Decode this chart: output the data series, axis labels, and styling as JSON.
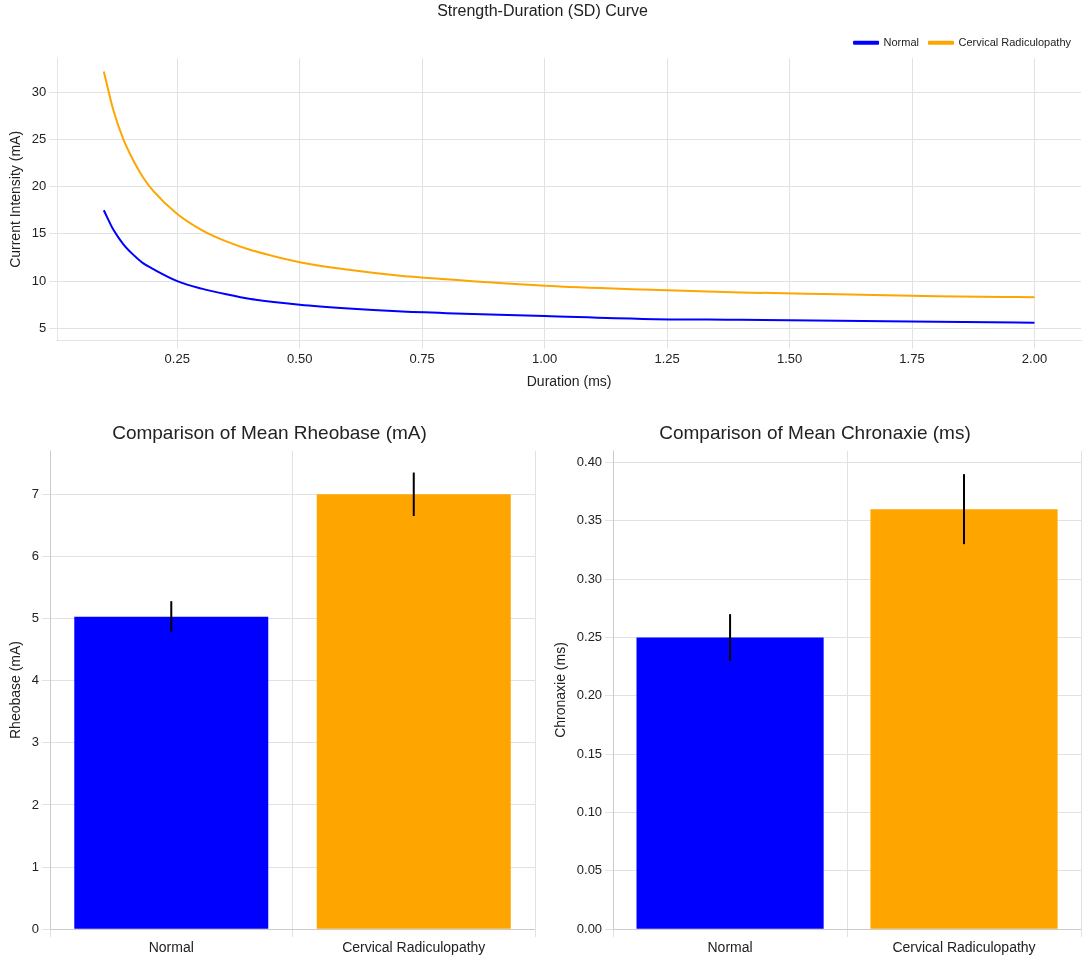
{
  "chart_data": [
    {
      "type": "line",
      "title": "Strength-Duration (SD) Curve",
      "xlabel": "Duration (ms)",
      "ylabel": "Current Intensity (mA)",
      "x": [
        0.1,
        0.12,
        0.14,
        0.16,
        0.18,
        0.2,
        0.25,
        0.3,
        0.35,
        0.4,
        0.5,
        0.6,
        0.7,
        0.8,
        1.0,
        1.2,
        1.4,
        1.6,
        1.8,
        2.0
      ],
      "series": [
        {
          "name": "Normal",
          "color": "#0000ff",
          "values": [
            17.5,
            15.4,
            13.9,
            12.8,
            11.9,
            11.3,
            10.0,
            9.2,
            8.6,
            8.1,
            7.5,
            7.1,
            6.8,
            6.6,
            6.3,
            6.0,
            5.9,
            5.8,
            5.7,
            5.6
          ]
        },
        {
          "name": "Cervical Radiculopathy",
          "color": "#ffa500",
          "values": [
            32.2,
            28.0,
            25.0,
            22.8,
            21.0,
            19.6,
            17.1,
            15.4,
            14.2,
            13.3,
            12.0,
            11.2,
            10.6,
            10.2,
            9.5,
            9.1,
            8.8,
            8.6,
            8.4,
            8.3
          ]
        }
      ],
      "xlim": [
        0.005,
        2.095
      ],
      "xticks": [
        0.25,
        {
          "value": 0.5,
          "label": "0.50"
        },
        0.75,
        {
          "value": 1,
          "label": "1.00"
        },
        1.25,
        {
          "value": 1.5,
          "label": "1.50"
        },
        1.75,
        {
          "value": 2,
          "label": "2.00"
        }
      ],
      "ylim": [
        3.7,
        33.6
      ],
      "yticks": [
        5,
        10,
        15,
        20,
        25,
        30
      ],
      "grid": true,
      "legend": "top right",
      "marker": "none",
      "line_style": "solid"
    },
    {
      "type": "bar",
      "title": "Comparison of Mean Rheobase (mA)",
      "ylabel": "Rheobase (mA)",
      "categories": [
        "Normal",
        "Cervical Radiculopathy"
      ],
      "values": [
        5.03,
        7.0
      ],
      "colors": [
        "#0000ff",
        "#ffa500"
      ],
      "errors": [
        0.25,
        0.35
      ],
      "ylim": [
        0,
        7.7
      ],
      "yticks": [
        0,
        1,
        2,
        3,
        4,
        5,
        6,
        7
      ],
      "grid": true
    },
    {
      "type": "bar",
      "title": "Comparison of Mean Chronaxie (ms)",
      "ylabel": "Chronaxie (ms)",
      "categories": [
        "Normal",
        "Cervical Radiculopathy"
      ],
      "values": [
        0.25,
        0.36
      ],
      "colors": [
        "#0000ff",
        "#ffa500"
      ],
      "errors": [
        0.02,
        0.03
      ],
      "ylim": [
        0,
        0.41
      ],
      "yticks": [
        {
          "value": 0,
          "label": "0.00"
        },
        {
          "value": 0.05,
          "label": "0.05"
        },
        {
          "value": 0.1,
          "label": "0.10"
        },
        {
          "value": 0.15,
          "label": "0.15"
        },
        {
          "value": 0.2,
          "label": "0.20"
        },
        {
          "value": 0.25,
          "label": "0.25"
        },
        {
          "value": 0.3,
          "label": "0.30"
        },
        {
          "value": 0.35,
          "label": "0.35"
        },
        {
          "value": 0.4,
          "label": "0.40"
        }
      ],
      "grid": true
    }
  ]
}
